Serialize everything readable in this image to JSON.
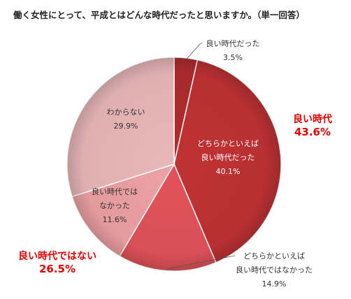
{
  "title": "働く女性にとって、平成とはどんな時代だったと思いますか。（単一回答）",
  "chart_data": {
    "type": "pie",
    "slices": [
      {
        "lines": [
          "良い時代だった"
        ],
        "value": 3.5,
        "value_label": "3.5%",
        "color": "#b02c2e"
      },
      {
        "lines": [
          "どちらかといえば",
          "良い時代だった"
        ],
        "value": 40.1,
        "value_label": "40.1%",
        "color": "#c03234"
      },
      {
        "lines": [
          "どちらかといえば",
          "良い時代ではなかった"
        ],
        "value": 14.9,
        "value_label": "14.9%",
        "color": "#e25359"
      },
      {
        "lines": [
          "良い時代では",
          "なかった"
        ],
        "value": 11.6,
        "value_label": "11.6%",
        "color": "#eda1a4"
      },
      {
        "lines": [
          "わからない"
        ],
        "value": 29.9,
        "value_label": "29.9%",
        "color": "#e9b7b8"
      }
    ],
    "group_labels": [
      {
        "name": "良い時代",
        "value_label": "43.6%"
      },
      {
        "name": "良い時代ではない",
        "value_label": "26.5%"
      }
    ]
  }
}
